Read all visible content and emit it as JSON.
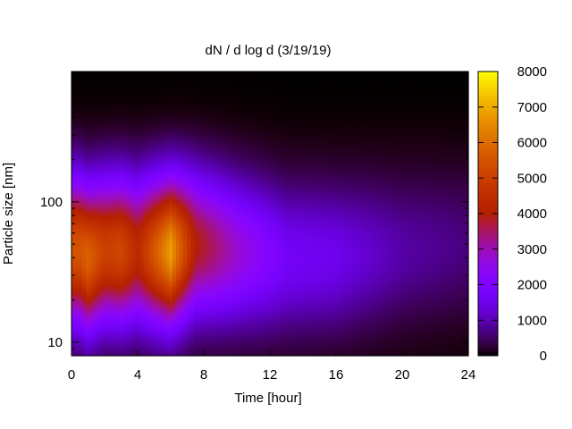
{
  "chart_data": {
    "type": "heatmap",
    "title": "dN / d log d (3/19/19)",
    "xlabel": "Time [hour]",
    "ylabel": "Particle size [nm]",
    "xlim": [
      0,
      24
    ],
    "ylim": [
      8,
      850
    ],
    "y_scale": "log",
    "x_ticks": [
      0,
      4,
      8,
      12,
      16,
      20,
      24
    ],
    "y_ticks": [
      10,
      100
    ],
    "colorbar": {
      "range": [
        0,
        8000
      ],
      "ticks": [
        0,
        1000,
        2000,
        3000,
        4000,
        5000,
        6000,
        7000,
        8000
      ],
      "palette": "gnuplot pm3d default (black-purple-red-orange-yellow)"
    },
    "time_hours": [
      0,
      0.5,
      1,
      1.5,
      2,
      2.5,
      3,
      3.5,
      4,
      4.5,
      5,
      5.5,
      6,
      6.5,
      7,
      7.5,
      8,
      9,
      10,
      11,
      12,
      13,
      14,
      15,
      16,
      17,
      18,
      19,
      20,
      21,
      22,
      23,
      24
    ],
    "size_nm": [
      8,
      10,
      12,
      15,
      20,
      25,
      30,
      40,
      50,
      60,
      80,
      100,
      130,
      170,
      220,
      300,
      400,
      550,
      700,
      850
    ],
    "peak_mode_by_time": [
      {
        "t": 0.5,
        "size_nm": 45,
        "dNdlogd": 5500
      },
      {
        "t": 1.0,
        "size_nm": 40,
        "dNdlogd": 5800
      },
      {
        "t": 2.0,
        "size_nm": 45,
        "dNdlogd": 5000
      },
      {
        "t": 3.0,
        "size_nm": 45,
        "dNdlogd": 5200
      },
      {
        "t": 4.0,
        "size_nm": 45,
        "dNdlogd": 4300
      },
      {
        "t": 6.0,
        "size_nm": 45,
        "dNdlogd": 6800
      },
      {
        "t": 7.5,
        "size_nm": 50,
        "dNdlogd": 4000
      },
      {
        "t": 10.0,
        "size_nm": 45,
        "dNdlogd": 2800
      },
      {
        "t": 13.0,
        "size_nm": 40,
        "dNdlogd": 1700
      },
      {
        "t": 16.0,
        "size_nm": 40,
        "dNdlogd": 1500
      },
      {
        "t": 20.0,
        "size_nm": 45,
        "dNdlogd": 900
      },
      {
        "t": 24.0,
        "size_nm": 50,
        "dNdlogd": 650
      }
    ]
  }
}
